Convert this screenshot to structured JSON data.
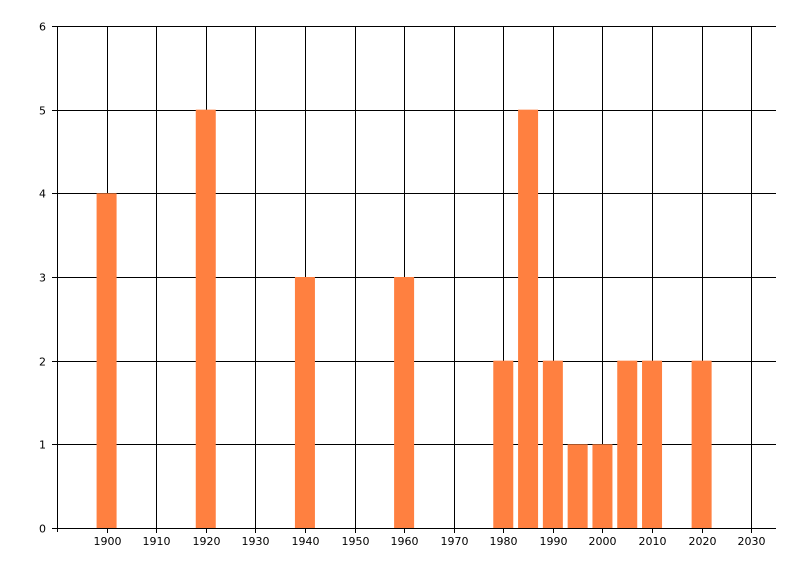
{
  "chart_data": {
    "type": "bar",
    "x": [
      1900,
      1920,
      1940,
      1960,
      1980,
      1985,
      1990,
      1995,
      2000,
      2005,
      2010,
      2020
    ],
    "values": [
      4,
      5,
      3,
      3,
      2,
      5,
      2,
      1,
      1,
      2,
      2,
      2
    ],
    "title": "",
    "xlabel": "",
    "ylabel": "",
    "xlim": [
      1890,
      2035
    ],
    "ylim": [
      0,
      6
    ],
    "x_ticks": [
      "1900",
      "1910",
      "1920",
      "1930",
      "1940",
      "1950",
      "1960",
      "1970",
      "1980",
      "1990",
      "2000",
      "2010",
      "2020",
      "2030"
    ],
    "y_ticks": [
      "0",
      "1",
      "2",
      "3",
      "4",
      "5",
      "6"
    ],
    "grid": true,
    "legend": "none",
    "bar_color": "#ff8040",
    "grid_color": "#000000"
  }
}
